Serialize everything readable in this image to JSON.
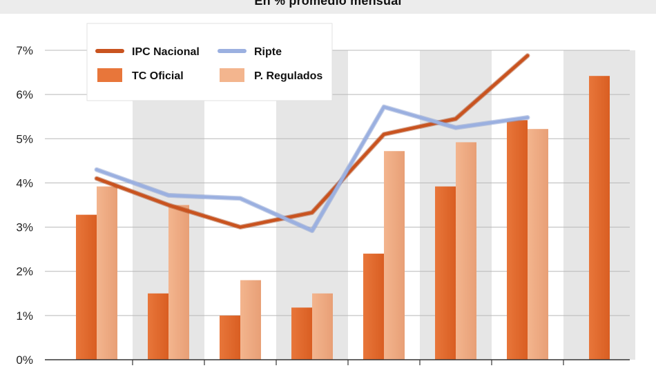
{
  "header": {
    "subtitle": "En % promedio mensual"
  },
  "chart_data": {
    "type": "bar",
    "title": "",
    "subtitle": "En % promedio mensual",
    "xlabel": "",
    "ylabel": "",
    "ylim": [
      0,
      7
    ],
    "y_ticks": [
      "0%",
      "1%",
      "2%",
      "3%",
      "4%",
      "5%",
      "6%",
      "7%"
    ],
    "grid": true,
    "legend_position": "top-left",
    "colors": {
      "tc_oficial": "#e8763a",
      "p_regulados": "#f3b58e",
      "ipc_nacional": "#c9531f",
      "ripte": "#9bb0e0",
      "band": "#e6e6e6"
    },
    "series": [
      {
        "name": "TC Oficial",
        "kind": "bar",
        "values": [
          3.28,
          1.5,
          1.0,
          1.18,
          2.4,
          3.92,
          5.42,
          6.42
        ]
      },
      {
        "name": "P. Regulados",
        "kind": "bar",
        "values": [
          3.92,
          3.5,
          1.8,
          1.5,
          4.72,
          4.92,
          5.22,
          null
        ]
      },
      {
        "name": "IPC Nacional",
        "kind": "line",
        "values": [
          4.1,
          3.5,
          3.0,
          3.33,
          5.1,
          5.45,
          6.88,
          null
        ]
      },
      {
        "name": "Ripte",
        "kind": "line",
        "values": [
          4.3,
          3.72,
          3.65,
          2.92,
          5.72,
          5.25,
          5.48,
          null
        ]
      }
    ]
  }
}
